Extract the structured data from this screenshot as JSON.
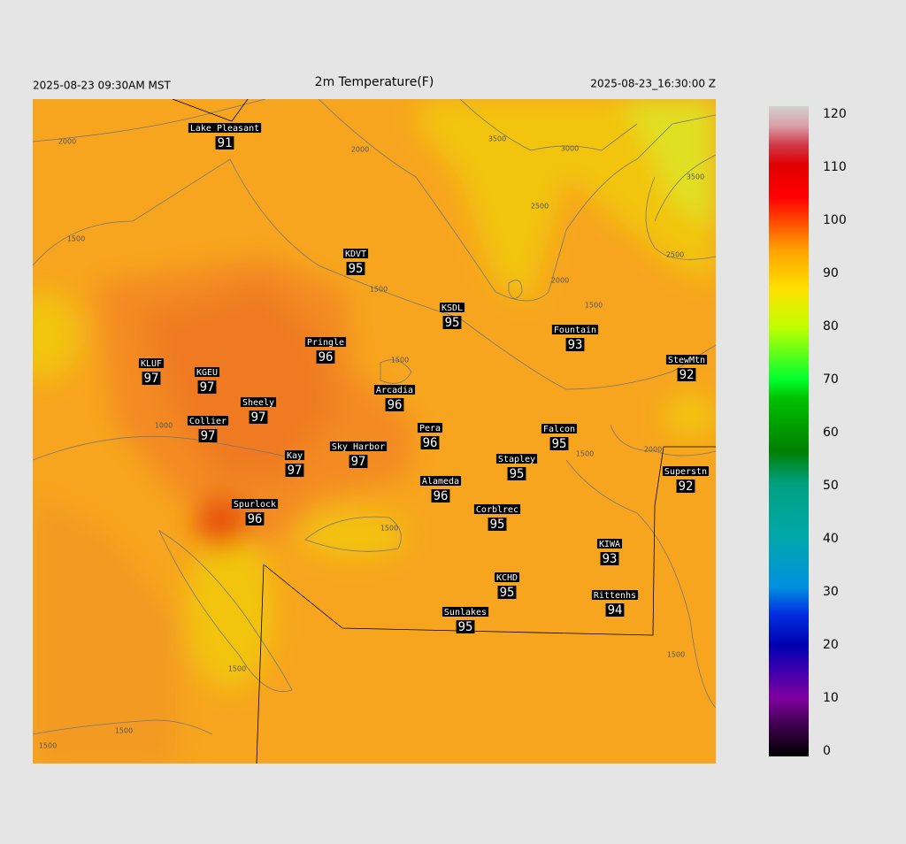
{
  "header": {
    "left": "2025-08-23 09:30AM MST",
    "title": "2m Temperature(F)",
    "right": "2025-08-23_16:30:00 Z"
  },
  "stations": [
    {
      "name": "Lake Pleasant",
      "value": 91
    },
    {
      "name": "KDVT",
      "value": 95
    },
    {
      "name": "KSDL",
      "value": 95
    },
    {
      "name": "Fountain",
      "value": 93
    },
    {
      "name": "Pringle",
      "value": 96
    },
    {
      "name": "KLUF",
      "value": 97
    },
    {
      "name": "KGEU",
      "value": 97
    },
    {
      "name": "StewMtn",
      "value": 92
    },
    {
      "name": "Arcadia",
      "value": 96
    },
    {
      "name": "Sheely",
      "value": 97
    },
    {
      "name": "Collier",
      "value": 97
    },
    {
      "name": "Pera",
      "value": 96
    },
    {
      "name": "Falcon",
      "value": 95
    },
    {
      "name": "Sky Harbor",
      "value": 97
    },
    {
      "name": "Kay",
      "value": 97
    },
    {
      "name": "Stapley",
      "value": 95
    },
    {
      "name": "Superstn",
      "value": 92
    },
    {
      "name": "Alameda",
      "value": 96
    },
    {
      "name": "Spurlock",
      "value": 96
    },
    {
      "name": "Corblrec",
      "value": 95
    },
    {
      "name": "KIWA",
      "value": 93
    },
    {
      "name": "KCHD",
      "value": 95
    },
    {
      "name": "Rittenhs",
      "value": 94
    },
    {
      "name": "Sunlakes",
      "value": 95
    }
  ],
  "contour_labels": [
    2000,
    2000,
    3500,
    3000,
    3500,
    2500,
    2500,
    2000,
    1500,
    1500,
    1500,
    1500,
    1000,
    2000,
    1500,
    1500,
    1500,
    1500,
    1500,
    1500
  ],
  "colorbar": {
    "range": [
      -1,
      121.5
    ],
    "ticks": [
      0,
      10,
      20,
      30,
      40,
      50,
      60,
      70,
      80,
      90,
      100,
      110,
      120
    ]
  }
}
